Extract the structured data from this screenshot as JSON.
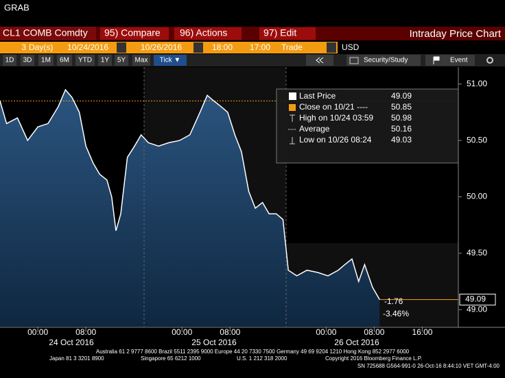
{
  "header": {
    "title": "GRAB"
  },
  "toolbar": {
    "security": "CL1 COMB Comdty",
    "buttons": [
      "95) Compare",
      "96) Actions",
      "97) Edit"
    ],
    "chart_name": "Intraday Price Chart"
  },
  "settings": {
    "period": "3",
    "period_unit": "Day(s)",
    "start_date": "10/24/2016",
    "end_date": "10/26/2016",
    "start_time": "18:00",
    "end_time": "17:00",
    "field": "Trade",
    "currency": "USD"
  },
  "ranges": {
    "tabs": [
      "1D",
      "3D",
      "1M",
      "6M",
      "YTD",
      "1Y",
      "5Y",
      "Max",
      "Tick ▼"
    ],
    "study": "Security/Study",
    "event": "Event"
  },
  "chart_data": {
    "type": "line",
    "x": [
      -6.3,
      -5.2,
      -3.4,
      -1.7,
      0,
      1.7,
      3.4,
      4.6,
      5.7,
      6.9,
      8,
      9.2,
      10.3,
      11.5,
      12.3,
      13,
      13.8,
      14.9,
      16.1,
      17.2,
      18.4,
      20.1,
      21.8,
      23.6,
      25.3,
      27,
      28.2,
      29.3,
      30.5,
      31.6,
      32.8,
      33.9,
      35.1,
      36.2,
      37.4,
      38.5,
      39.7,
      40.8,
      41.7,
      43.1,
      44.8,
      46.6,
      48.3,
      50,
      51.1,
      52.3,
      53.4,
      54.4,
      55.7,
      56.9
    ],
    "values": [
      50.85,
      50.65,
      50.7,
      50.5,
      50.62,
      50.65,
      50.8,
      50.95,
      50.88,
      50.75,
      50.45,
      50.3,
      50.2,
      50.15,
      50.0,
      49.7,
      49.85,
      50.35,
      50.45,
      50.55,
      50.48,
      50.45,
      50.48,
      50.5,
      50.55,
      50.75,
      50.9,
      50.85,
      50.8,
      50.75,
      50.55,
      50.4,
      50.05,
      49.9,
      49.95,
      49.85,
      49.85,
      49.8,
      49.35,
      49.3,
      49.35,
      49.33,
      49.3,
      49.35,
      49.4,
      49.45,
      49.25,
      49.4,
      49.2,
      49.09
    ],
    "color": "#ffffff",
    "xlim": [
      -6.3,
      70
    ],
    "ylim": [
      48.85,
      51.15
    ],
    "yticks": [
      {
        "value": 49,
        "label": "49.00"
      },
      {
        "value": 49.5,
        "label": "49.50"
      },
      {
        "value": 50,
        "label": "50.00"
      },
      {
        "value": 50.5,
        "label": "50.50"
      },
      {
        "value": 51,
        "label": "51.00"
      }
    ],
    "xticks": [
      {
        "value": 0,
        "label": "00:00"
      },
      {
        "value": 8,
        "label": "08:00"
      },
      {
        "value": 24,
        "label": "00:00"
      },
      {
        "value": 32,
        "label": "08:00"
      },
      {
        "value": 48,
        "label": "00:00"
      },
      {
        "value": 56,
        "label": "08:00"
      },
      {
        "value": 64,
        "label": "16:00"
      }
    ],
    "date_labels": [
      "24 Oct 2016",
      "25 Oct 2016",
      "26 Oct 2016"
    ],
    "legend": [
      {
        "label": "Last Price",
        "value": 49.09
      },
      {
        "label": "Close on 10/21 ----",
        "value": 50.85
      },
      {
        "label": "High on 10/24 03:59",
        "value": 50.98
      },
      {
        "label": "Average",
        "value": 50.16
      },
      {
        "label": "Low on 10/26 08:24",
        "value": 49.03
      }
    ],
    "annotations": [
      "-1.76",
      "-3.46%"
    ]
  },
  "footer": {
    "line1": "Australia 61 2 9777 8600 Brazil 5511 2395 9000 Europe 44 20 7330 7500 Germany 49 69 9204 1210 Hong Kong 852 2977 6000",
    "line2": [
      "Japan 81 3 3201 8900",
      "Singapore 65 6212 1000",
      "U.S. 1 212 318 2000",
      "Copyright 2016 Bloomberg Finance L.P."
    ],
    "line3": "SN 725688 G564-991-0 26-Oct-16  8:44:10 VET  GMT-4:00"
  }
}
